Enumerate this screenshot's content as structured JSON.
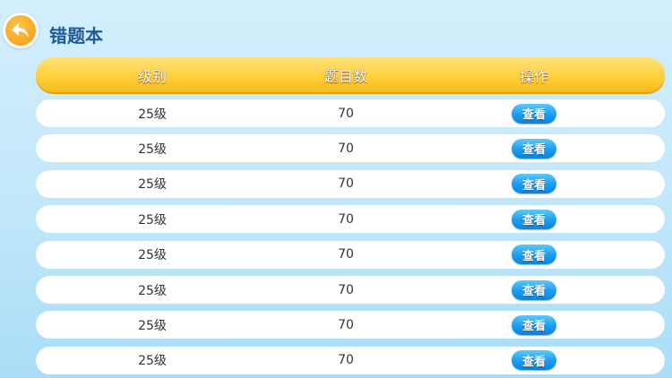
{
  "header": {
    "title": "错题本",
    "back_icon": "back-arrow-icon"
  },
  "table": {
    "columns": [
      "级别",
      "题目数",
      "操作"
    ],
    "rows": [
      {
        "level": "25级",
        "count": "70",
        "action": "查看"
      },
      {
        "level": "25级",
        "count": "70",
        "action": "查看"
      },
      {
        "level": "25级",
        "count": "70",
        "action": "查看"
      },
      {
        "level": "25级",
        "count": "70",
        "action": "查看"
      },
      {
        "level": "25级",
        "count": "70",
        "action": "查看"
      },
      {
        "level": "25级",
        "count": "70",
        "action": "查看"
      },
      {
        "level": "25级",
        "count": "70",
        "action": "查看"
      },
      {
        "level": "25级",
        "count": "70",
        "action": "查看"
      }
    ]
  },
  "colors": {
    "accent_header": "#ffd03b",
    "button": "#1a9df0",
    "title": "#1e5a96"
  }
}
